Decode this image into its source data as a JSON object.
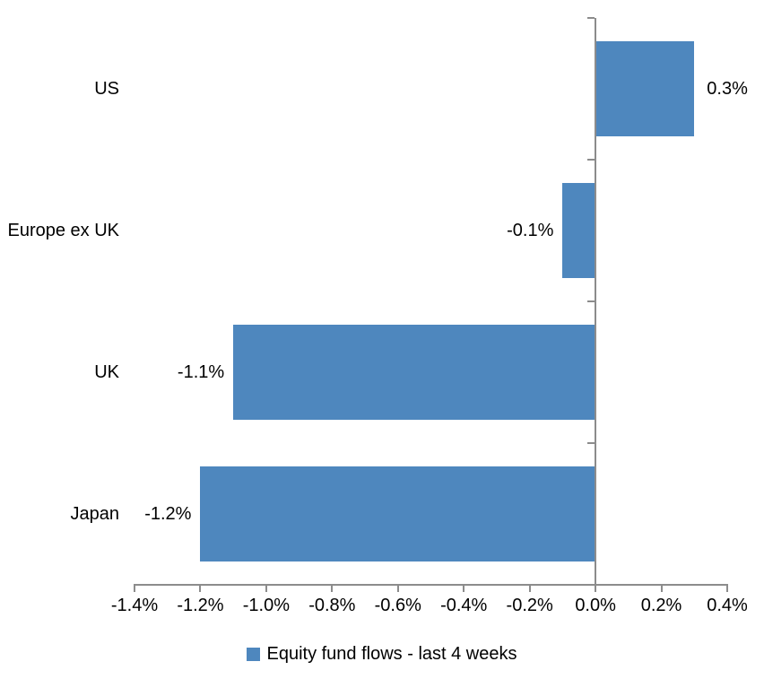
{
  "chart_data": {
    "type": "bar",
    "orientation": "horizontal",
    "title": "",
    "xlabel": "",
    "ylabel": "",
    "categories": [
      "US",
      "Europe ex UK",
      "UK",
      "Japan"
    ],
    "series": [
      {
        "name": "Equity fund flows - last 4 weeks",
        "values": [
          0.3,
          -0.1,
          -1.1,
          -1.2
        ],
        "data_labels": [
          "0.3%",
          "-0.1%",
          "-1.1%",
          "-1.2%"
        ]
      }
    ],
    "series_name": "Equity fund flows - last 4 weeks",
    "x_ticks": [
      "-1.4%",
      "-1.2%",
      "-1.0%",
      "-0.8%",
      "-0.6%",
      "-0.4%",
      "-0.2%",
      "0.0%",
      "0.2%",
      "0.4%"
    ],
    "xlim": [
      -1.4,
      0.4
    ],
    "unit": "percent",
    "grid": false,
    "legend_position": "bottom",
    "bar_color": "#4E87BE",
    "axis_color": "#8C8C8C",
    "text_color": "#000000",
    "background_color": "#FFFFFF"
  }
}
